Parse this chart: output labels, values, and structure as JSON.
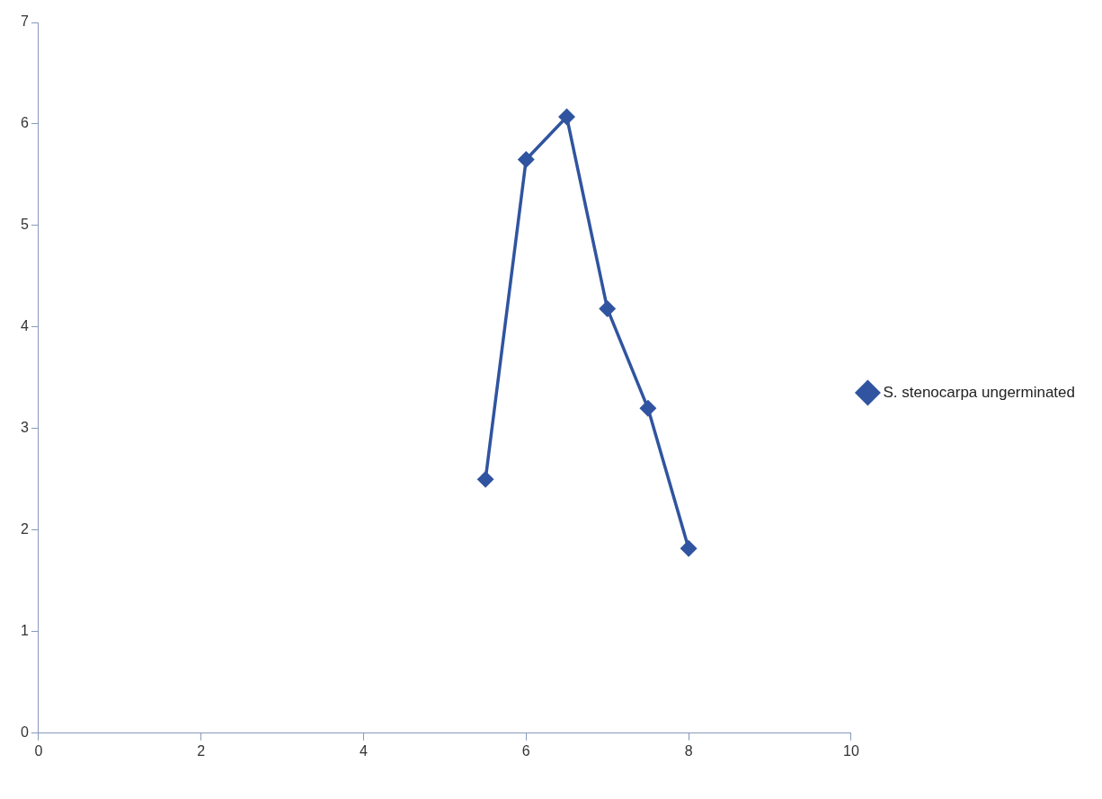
{
  "chart_data": {
    "type": "line",
    "x": [
      5.5,
      6,
      6.5,
      7,
      7.5,
      8
    ],
    "series": [
      {
        "name": "S. stenocarpa ungerminated",
        "color": "#3054a0",
        "values": [
          2.5,
          5.65,
          6.07,
          4.18,
          3.2,
          1.82
        ]
      }
    ],
    "xlim": [
      0,
      10
    ],
    "xticks": [
      0,
      2,
      4,
      6,
      8,
      10
    ],
    "ylim": [
      0,
      7
    ],
    "yticks": [
      0,
      1,
      2,
      3,
      4,
      5,
      6,
      7
    ],
    "grid": false,
    "legend": "right",
    "marker": "diamond",
    "line_style": "solid"
  }
}
